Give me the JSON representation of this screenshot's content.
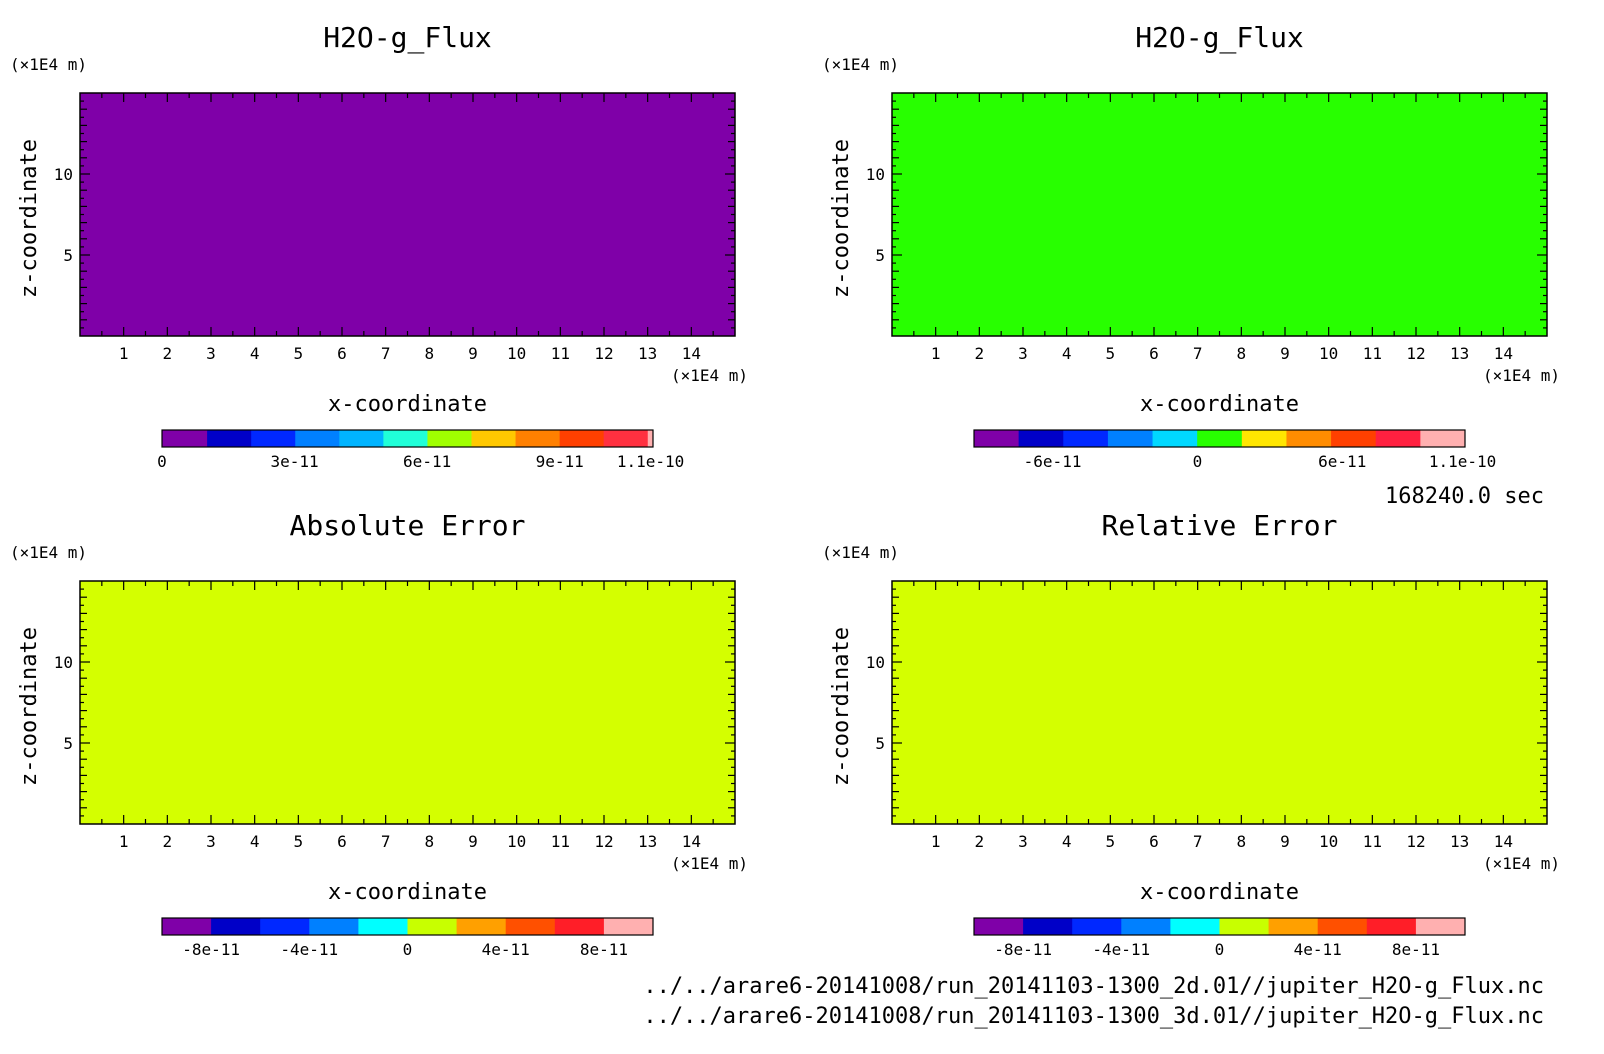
{
  "time_label": "168240.0 sec",
  "file_paths": [
    "../../arare6-20141008/run_20141103-1300_2d.01//jupiter_H2O-g_Flux.nc",
    "../../arare6-20141008/run_20141103-1300_3d.01//jupiter_H2O-g_Flux.nc"
  ],
  "chart_data": [
    {
      "type": "heatmap",
      "title": "H2O-g_Flux",
      "xlabel": "x-coordinate",
      "ylabel": "z-coordinate",
      "x_unit": "(×1E4 m)",
      "y_unit": "(×1E4 m)",
      "xlim": [
        0,
        15
      ],
      "ylim": [
        0,
        15
      ],
      "xticks": [
        1,
        2,
        3,
        4,
        5,
        6,
        7,
        8,
        9,
        10,
        11,
        12,
        13,
        14
      ],
      "yticks": [
        5,
        10
      ],
      "field_color": "#7f00a8",
      "colorbar": {
        "colors": [
          "#7f00a8",
          "#0000c8",
          "#0028ff",
          "#0080ff",
          "#00b4ff",
          "#20ffd8",
          "#a0ff00",
          "#ffc800",
          "#ff8000",
          "#ff4000",
          "#ff3040",
          "#ffb0b0"
        ],
        "widths": [
          43,
          42,
          42,
          42,
          42,
          42,
          42,
          42,
          42,
          42,
          42,
          5
        ],
        "ticks": [
          {
            "label": "0",
            "pos": 0.0
          },
          {
            "label": "3e-11",
            "pos": 0.27
          },
          {
            "label": "6e-11",
            "pos": 0.54
          },
          {
            "label": "9e-11",
            "pos": 0.81
          },
          {
            "label": "1.1e-10",
            "pos": 0.995
          }
        ]
      }
    },
    {
      "type": "heatmap",
      "title": "H2O-g_Flux",
      "xlabel": "x-coordinate",
      "ylabel": "z-coordinate",
      "x_unit": "(×1E4 m)",
      "y_unit": "(×1E4 m)",
      "xlim": [
        0,
        15
      ],
      "ylim": [
        0,
        15
      ],
      "xticks": [
        1,
        2,
        3,
        4,
        5,
        6,
        7,
        8,
        9,
        10,
        11,
        12,
        13,
        14
      ],
      "yticks": [
        5,
        10
      ],
      "field_color": "#28ff00",
      "colorbar": {
        "colors": [
          "#7f00a8",
          "#0000c8",
          "#0028ff",
          "#0080ff",
          "#00d8ff",
          "#28ff00",
          "#ffe600",
          "#ff8c00",
          "#ff4000",
          "#ff2040",
          "#ffb0b0"
        ],
        "widths": [
          1,
          1,
          1,
          1,
          1,
          1,
          1,
          1,
          1,
          1,
          1
        ],
        "ticks": [
          {
            "label": "-6e-11",
            "pos": 0.16
          },
          {
            "label": "0",
            "pos": 0.455
          },
          {
            "label": "6e-11",
            "pos": 0.75
          },
          {
            "label": "1.1e-10",
            "pos": 0.995
          }
        ]
      }
    },
    {
      "type": "heatmap",
      "title": "Absolute Error",
      "xlabel": "x-coordinate",
      "ylabel": "z-coordinate",
      "x_unit": "(×1E4 m)",
      "y_unit": "(×1E4 m)",
      "xlim": [
        0,
        15
      ],
      "ylim": [
        0,
        15
      ],
      "xticks": [
        1,
        2,
        3,
        4,
        5,
        6,
        7,
        8,
        9,
        10,
        11,
        12,
        13,
        14
      ],
      "yticks": [
        5,
        10
      ],
      "field_color": "#d4ff00",
      "colorbar": {
        "colors": [
          "#7f00a8",
          "#0000c8",
          "#0028ff",
          "#0080ff",
          "#00ffff",
          "#c8ff00",
          "#ffa000",
          "#ff5000",
          "#ff1e28",
          "#ffb0b0"
        ],
        "widths": [
          1,
          1,
          1,
          1,
          1,
          1,
          1,
          1,
          1,
          1
        ],
        "ticks": [
          {
            "label": "-8e-11",
            "pos": 0.1
          },
          {
            "label": "-4e-11",
            "pos": 0.3
          },
          {
            "label": "0",
            "pos": 0.5
          },
          {
            "label": "4e-11",
            "pos": 0.7
          },
          {
            "label": "8e-11",
            "pos": 0.9
          }
        ]
      }
    },
    {
      "type": "heatmap",
      "title": "Relative Error",
      "xlabel": "x-coordinate",
      "ylabel": "z-coordinate",
      "x_unit": "(×1E4 m)",
      "y_unit": "(×1E4 m)",
      "xlim": [
        0,
        15
      ],
      "ylim": [
        0,
        15
      ],
      "xticks": [
        1,
        2,
        3,
        4,
        5,
        6,
        7,
        8,
        9,
        10,
        11,
        12,
        13,
        14
      ],
      "yticks": [
        5,
        10
      ],
      "field_color": "#d4ff00",
      "colorbar": {
        "colors": [
          "#7f00a8",
          "#0000c8",
          "#0028ff",
          "#0080ff",
          "#00ffff",
          "#c8ff00",
          "#ffa000",
          "#ff5000",
          "#ff1e28",
          "#ffb0b0"
        ],
        "widths": [
          1,
          1,
          1,
          1,
          1,
          1,
          1,
          1,
          1,
          1
        ],
        "ticks": [
          {
            "label": "-8e-11",
            "pos": 0.1
          },
          {
            "label": "-4e-11",
            "pos": 0.3
          },
          {
            "label": "0",
            "pos": 0.5
          },
          {
            "label": "4e-11",
            "pos": 0.7
          },
          {
            "label": "8e-11",
            "pos": 0.9
          }
        ]
      }
    }
  ]
}
